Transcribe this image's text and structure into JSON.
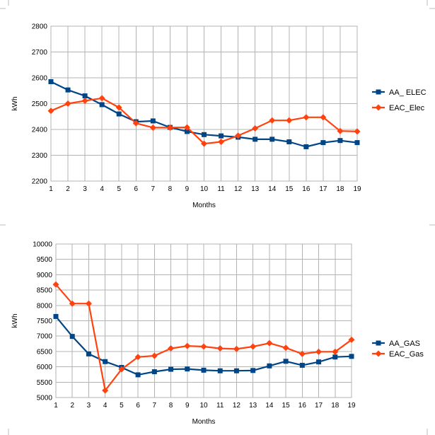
{
  "chart_data": [
    {
      "type": "line",
      "title": "",
      "xlabel": "Months",
      "ylabel": "kWh",
      "x": [
        1,
        2,
        3,
        4,
        5,
        6,
        7,
        8,
        9,
        10,
        11,
        12,
        13,
        14,
        15,
        16,
        17,
        18,
        19
      ],
      "ylim": [
        2200,
        2800
      ],
      "yticks": [
        2200,
        2300,
        2400,
        2500,
        2600,
        2700,
        2800
      ],
      "grid": true,
      "legend_position": "right",
      "series": [
        {
          "name": "AA_ ELEC",
          "color": "#004586",
          "marker": "square",
          "values": [
            2585,
            2553,
            2530,
            2496,
            2460,
            2430,
            2433,
            2408,
            2392,
            2380,
            2375,
            2370,
            2362,
            2362,
            2352,
            2333,
            2349,
            2357,
            2349
          ]
        },
        {
          "name": "EAC_Elec",
          "color": "#ff420e",
          "marker": "diamond",
          "values": [
            2472,
            2500,
            2511,
            2521,
            2485,
            2424,
            2407,
            2407,
            2408,
            2345,
            2352,
            2376,
            2404,
            2435,
            2435,
            2447,
            2447,
            2394,
            2392
          ]
        }
      ]
    },
    {
      "type": "line",
      "title": "",
      "xlabel": "Months",
      "ylabel": "kWh",
      "x": [
        1,
        2,
        3,
        4,
        5,
        6,
        7,
        8,
        9,
        10,
        11,
        12,
        13,
        14,
        15,
        16,
        17,
        18,
        19
      ],
      "ylim": [
        5000,
        10000
      ],
      "yticks": [
        5000,
        5500,
        6000,
        6500,
        7000,
        7500,
        8000,
        8500,
        9000,
        9500,
        10000
      ],
      "grid": true,
      "legend_position": "right",
      "series": [
        {
          "name": "AA_GAS",
          "color": "#004586",
          "marker": "square",
          "values": [
            7640,
            6990,
            6420,
            6170,
            5980,
            5740,
            5840,
            5920,
            5930,
            5890,
            5870,
            5870,
            5880,
            6030,
            6180,
            6050,
            6160,
            6320,
            6340
          ]
        },
        {
          "name": "EAC_Gas",
          "color": "#ff420e",
          "marker": "diamond",
          "values": [
            8680,
            8060,
            8060,
            5230,
            5920,
            6320,
            6360,
            6600,
            6680,
            6660,
            6600,
            6580,
            6660,
            6770,
            6620,
            6420,
            6490,
            6490,
            6880
          ]
        }
      ]
    }
  ]
}
